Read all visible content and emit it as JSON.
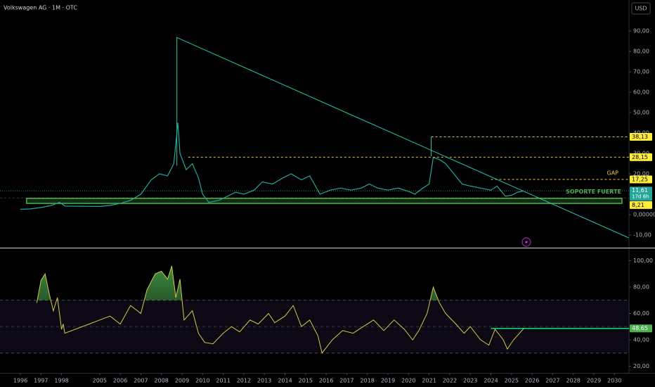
{
  "chart_data": [
    {
      "type": "line",
      "title": "Volkswagen AG · 1M · OTC",
      "currency": "USD",
      "color": "#26a69a",
      "x": [
        1996.0,
        1996.5,
        1997.0,
        1997.5,
        1997.9,
        1998.2,
        1998.6,
        2005.0,
        2005.5,
        2006.0,
        2006.5,
        2007.0,
        2007.5,
        2007.9,
        2008.3,
        2008.6,
        2008.8,
        2008.9,
        2009.2,
        2009.5,
        2009.8,
        2010.0,
        2010.3,
        2010.8,
        2011.2,
        2011.6,
        2012.0,
        2012.5,
        2012.9,
        2013.4,
        2013.9,
        2014.3,
        2014.8,
        2015.2,
        2015.7,
        2016.2,
        2016.7,
        2017.2,
        2017.7,
        2018.1,
        2018.5,
        2019.0,
        2019.5,
        2020.1,
        2020.3,
        2020.7,
        2021.0,
        2021.2,
        2021.5,
        2021.8,
        2022.2,
        2022.6,
        2023.0,
        2023.5,
        2024.0,
        2024.3,
        2024.7,
        2025.0,
        2025.3,
        2025.6
      ],
      "values": [
        2.6,
        2.8,
        3.5,
        4.5,
        6.0,
        5.0,
        4.2,
        4.0,
        4.5,
        5.5,
        7,
        10,
        17,
        20,
        19,
        25,
        45,
        30,
        22,
        25,
        18,
        10,
        6,
        7,
        9,
        11,
        10,
        12,
        16,
        15,
        18,
        20,
        17,
        19,
        10,
        12,
        13,
        12,
        13,
        15,
        13,
        12,
        13,
        11,
        10,
        13,
        15,
        28,
        27,
        25,
        20,
        15,
        14,
        13,
        12,
        14,
        9,
        9.5,
        11,
        11.61
      ],
      "xlim": [
        1995.0,
        2030.7
      ],
      "ylim": [
        -16.2,
        105.2
      ],
      "yticks": [
        {
          "value": 90,
          "label": "90,00"
        },
        {
          "value": 80,
          "label": "80,00"
        },
        {
          "value": 70,
          "label": "70,00"
        },
        {
          "value": 60,
          "label": "60,00"
        },
        {
          "value": 50,
          "label": "50,00"
        },
        {
          "value": 40,
          "label": "40,00"
        },
        {
          "value": 30,
          "label": "30,00"
        },
        {
          "value": 20,
          "label": "20,00"
        },
        {
          "value": 10,
          "label": "10,00"
        },
        {
          "value": 0,
          "label": "0,000000"
        },
        {
          "value": -10,
          "label": "-10,00"
        }
      ],
      "trendline": {
        "x": [
          2008.73,
          2030.7
        ],
        "values": [
          86.9,
          -11.4
        ],
        "color": "#26c6b0"
      },
      "vlines": [
        {
          "x": 2008.75,
          "values": [
            86.9,
            24
          ]
        },
        {
          "x": 2021.1,
          "values": [
            38.13,
            28.6
          ]
        }
      ],
      "levels": [
        {
          "value": 38.13,
          "label": "38,13",
          "from": 2021.1
        },
        {
          "value": 28.15,
          "label": "28,15",
          "from": 2009.3
        },
        {
          "value": 17.25,
          "label": "17,25",
          "from": 2024.0,
          "note": "GAP"
        },
        {
          "value": 8.21,
          "label": "8,21"
        }
      ],
      "support": {
        "label": "SOPORTE FUERTE",
        "range": [
          5.5,
          8.0
        ],
        "from": 1996.3
      },
      "last": {
        "value": 11.61,
        "label": "11,61",
        "countdown": "17d 6h"
      }
    },
    {
      "type": "line",
      "color": "#d4c84a",
      "x": [
        1996.8,
        1997.0,
        1997.2,
        1997.4,
        1997.6,
        1997.8,
        1998.0,
        1998.3,
        1998.6,
        2005.0,
        2005.5,
        2006.0,
        2006.5,
        2007.0,
        2007.3,
        2007.7,
        2008.0,
        2008.3,
        2008.5,
        2008.7,
        2008.9,
        2009.1,
        2009.5,
        2009.8,
        2010.1,
        2010.5,
        2011.0,
        2011.4,
        2011.8,
        2012.3,
        2012.7,
        2013.2,
        2013.5,
        2014.0,
        2014.4,
        2014.8,
        2015.2,
        2015.6,
        2015.8,
        2016.3,
        2016.8,
        2017.3,
        2017.8,
        2018.3,
        2018.8,
        2019.3,
        2019.8,
        2020.2,
        2020.5,
        2020.9,
        2021.2,
        2021.5,
        2021.8,
        2022.3,
        2022.7,
        2023.0,
        2023.5,
        2023.9,
        2024.2,
        2024.6,
        2024.8,
        2025.1,
        2025.6
      ],
      "values": [
        68,
        85,
        90,
        75,
        62,
        72,
        48,
        52,
        45,
        55,
        58,
        52,
        66,
        60,
        78,
        90,
        92,
        86,
        96,
        72,
        86,
        55,
        62,
        45,
        38,
        37,
        45,
        50,
        46,
        55,
        52,
        60,
        53,
        58,
        66,
        50,
        55,
        43,
        30,
        40,
        47,
        45,
        50,
        55,
        47,
        55,
        48,
        40,
        47,
        60,
        80,
        68,
        60,
        52,
        45,
        50,
        40,
        36,
        48,
        40,
        33,
        40,
        48.65
      ],
      "xlim": [
        1995.0,
        2030.7
      ],
      "ylim": [
        14.9,
        108.8
      ],
      "xticks": [
        1996,
        1997,
        1998,
        2005,
        2006,
        2007,
        2008,
        2009,
        2010,
        2011,
        2012,
        2013,
        2014,
        2015,
        2016,
        2017,
        2018,
        2019,
        2020,
        2021,
        2022,
        2023,
        2024,
        2025,
        2026,
        2027,
        2028,
        2029,
        2030
      ],
      "yticks": [
        {
          "value": 100,
          "label": "100,00"
        },
        {
          "value": 80,
          "label": "80,00"
        },
        {
          "value": 60,
          "label": "60,00"
        },
        {
          "value": 40,
          "label": "40,00"
        },
        {
          "value": 20,
          "label": "20,00"
        }
      ],
      "bands": [
        70,
        30
      ],
      "midline": 50,
      "level": {
        "value": 48.65,
        "label": "48,65",
        "from": 2024.0
      }
    }
  ]
}
